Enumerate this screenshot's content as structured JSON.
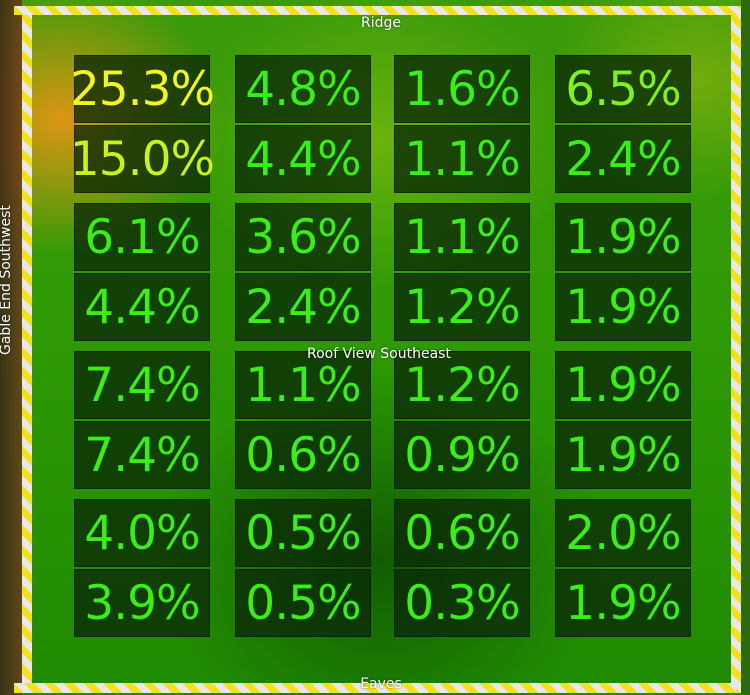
{
  "labels": {
    "top": "Ridge",
    "bottom": "Eaves",
    "center": "Roof View Southeast",
    "side": "Gable End Southwest"
  },
  "rows": [
    [
      "25.3%",
      "4.8%",
      "1.6%",
      "6.5%"
    ],
    [
      "15.0%",
      "4.4%",
      "1.1%",
      "2.4%"
    ],
    [
      "6.1%",
      "3.6%",
      "1.1%",
      "1.9%"
    ],
    [
      "4.4%",
      "2.4%",
      "1.2%",
      "1.9%"
    ],
    [
      "7.4%",
      "1.1%",
      "1.2%",
      "1.9%"
    ],
    [
      "7.4%",
      "0.6%",
      "0.9%",
      "1.9%"
    ],
    [
      "4.0%",
      "0.5%",
      "0.6%",
      "2.0%"
    ],
    [
      "3.9%",
      "0.5%",
      "0.3%",
      "1.9%"
    ]
  ],
  "colors": {
    "hazard_stripe": "#f2e21a",
    "value_green": "#39ef14",
    "value_yellow": "#f4f51c"
  }
}
